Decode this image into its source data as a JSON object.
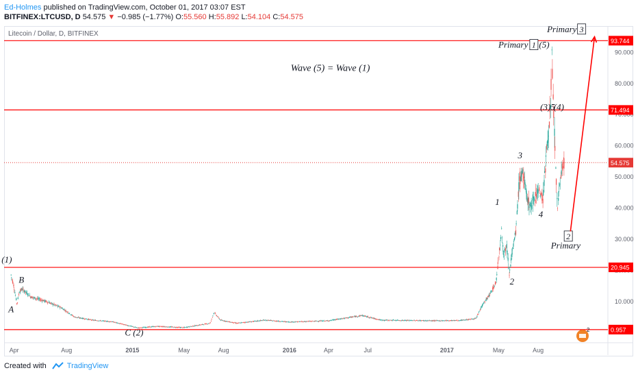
{
  "header": {
    "author": "Ed-Holmes",
    "published": " published on TradingView.com, October 01, 2017 03:07 EST"
  },
  "quote": {
    "symbol": "BITFINEX:LTCUSD, D",
    "last": "54.575",
    "change": "−0.985 (−1.77%)",
    "o_label": "O:",
    "o": "55.560",
    "h_label": "H:",
    "h": "55.892",
    "l_label": "L:",
    "l": "54.104",
    "c_label": "C:",
    "c": "54.575"
  },
  "chart_title": "Litecoin / Dollar, D, BITFINEX",
  "footer": {
    "created_with": "Created with",
    "brand": "TradingView"
  },
  "colors": {
    "up": "#26a69a",
    "down": "#ef5350",
    "line": "#ff0000",
    "axis": "#5d606b",
    "price": "#e53935"
  },
  "chart_data": {
    "type": "candlestick",
    "x_tick_labels": [
      "Apr",
      "Aug",
      "2015",
      "May",
      "Aug",
      "2016",
      "Apr",
      "Jul",
      "2017",
      "May",
      "Aug"
    ],
    "y_tick_labels": [
      "10.000",
      "20.000",
      "30.000",
      "40.000",
      "50.000",
      "60.000",
      "70.000",
      "80.000",
      "90.000"
    ],
    "y_ticks": [
      10,
      20,
      30,
      40,
      50,
      60,
      70,
      80,
      90
    ],
    "ylim": [
      -1.5,
      98
    ],
    "horizontal_levels": [
      {
        "label": "93.744",
        "value": 93.744
      },
      {
        "label": "71.494",
        "value": 71.494
      },
      {
        "label": "20.945",
        "value": 20.945
      },
      {
        "label": "0.957",
        "value": 0.957
      }
    ],
    "current_price": {
      "label": "54.575",
      "value": 54.575
    },
    "price_path": [
      {
        "d": "2014-03-25",
        "v": 18.5
      },
      {
        "d": "2014-03-30",
        "v": 16.0
      },
      {
        "d": "2014-04-05",
        "v": 11.5
      },
      {
        "d": "2014-04-08",
        "v": 9.0
      },
      {
        "d": "2014-04-13",
        "v": 13.0
      },
      {
        "d": "2014-04-20",
        "v": 14.0
      },
      {
        "d": "2014-05-10",
        "v": 11.5
      },
      {
        "d": "2014-06-15",
        "v": 10.0
      },
      {
        "d": "2014-07-20",
        "v": 8.0
      },
      {
        "d": "2014-08-20",
        "v": 5.0
      },
      {
        "d": "2014-10-01",
        "v": 4.0
      },
      {
        "d": "2014-11-15",
        "v": 3.5
      },
      {
        "d": "2015-01-14",
        "v": 1.5
      },
      {
        "d": "2015-03-01",
        "v": 2.0
      },
      {
        "d": "2015-05-01",
        "v": 1.6
      },
      {
        "d": "2015-07-01",
        "v": 3.0
      },
      {
        "d": "2015-07-10",
        "v": 6.5
      },
      {
        "d": "2015-07-25",
        "v": 4.0
      },
      {
        "d": "2015-09-01",
        "v": 3.0
      },
      {
        "d": "2015-11-05",
        "v": 4.0
      },
      {
        "d": "2016-01-01",
        "v": 3.4
      },
      {
        "d": "2016-04-01",
        "v": 3.8
      },
      {
        "d": "2016-06-18",
        "v": 5.5
      },
      {
        "d": "2016-08-01",
        "v": 4.0
      },
      {
        "d": "2016-12-01",
        "v": 3.8
      },
      {
        "d": "2017-02-01",
        "v": 3.9
      },
      {
        "d": "2017-03-10",
        "v": 4.5
      },
      {
        "d": "2017-03-25",
        "v": 9.0
      },
      {
        "d": "2017-04-10",
        "v": 12.0
      },
      {
        "d": "2017-04-25",
        "v": 16.0
      },
      {
        "d": "2017-05-03",
        "v": 26.0
      },
      {
        "d": "2017-05-08",
        "v": 33.0
      },
      {
        "d": "2017-05-13",
        "v": 25.0
      },
      {
        "d": "2017-05-20",
        "v": 28.0
      },
      {
        "d": "2017-05-26",
        "v": 19.0
      },
      {
        "d": "2017-06-01",
        "v": 25.0
      },
      {
        "d": "2017-06-10",
        "v": 32.0
      },
      {
        "d": "2017-06-18",
        "v": 48.0
      },
      {
        "d": "2017-06-26",
        "v": 52.0
      },
      {
        "d": "2017-07-05",
        "v": 44.0
      },
      {
        "d": "2017-07-15",
        "v": 40.0
      },
      {
        "d": "2017-07-25",
        "v": 44.0
      },
      {
        "d": "2017-08-02",
        "v": 46.0
      },
      {
        "d": "2017-08-12",
        "v": 43.0
      },
      {
        "d": "2017-08-22",
        "v": 60.0
      },
      {
        "d": "2017-08-30",
        "v": 72.0
      },
      {
        "d": "2017-09-02",
        "v": 88.0
      },
      {
        "d": "2017-09-07",
        "v": 68.0
      },
      {
        "d": "2017-09-12",
        "v": 50.0
      },
      {
        "d": "2017-09-15",
        "v": 38.0
      },
      {
        "d": "2017-09-20",
        "v": 48.0
      },
      {
        "d": "2017-09-25",
        "v": 52.0
      },
      {
        "d": "2017-10-01",
        "v": 54.575
      }
    ],
    "annotations": [
      {
        "text": "(1)",
        "d": "2014-03-15",
        "v": 22.5
      },
      {
        "text": "B",
        "d": "2014-04-18",
        "v": 16.0
      },
      {
        "text": "A",
        "d": "2014-03-25",
        "v": 6.5
      },
      {
        "text": "C (2)",
        "d": "2015-01-05",
        "v": -1.0
      },
      {
        "text": "1",
        "d": "2017-04-28",
        "v": 41.0
      },
      {
        "text": "2",
        "d": "2017-06-01",
        "v": 15.5
      },
      {
        "text": "3",
        "d": "2017-06-20",
        "v": 56.0
      },
      {
        "text": "4",
        "d": "2017-08-07",
        "v": 37.0
      },
      {
        "text": "(3)5",
        "d": "2017-08-23",
        "v": 71.5
      },
      {
        "text": "(4)",
        "d": "2017-09-18",
        "v": 71.5
      },
      {
        "text": "Wave (5) = Wave (1)",
        "d": "2016-04-05",
        "v": 84.0
      },
      {
        "text": "Primary",
        "d": "2017-06-04",
        "v": 91.5
      },
      {
        "text": "(5)",
        "d": "2017-08-15",
        "v": 91.5
      },
      {
        "text": "Primary",
        "d": "2017-10-04",
        "v": 27.0
      },
      {
        "text": "Primary",
        "d": "2017-09-25",
        "v": 96.5
      }
    ],
    "wave_boxes": [
      {
        "text": "1",
        "d": "2017-07-22",
        "v": 91.5
      },
      {
        "text": "2",
        "d": "2017-10-10",
        "v": 30.0
      },
      {
        "text": "3",
        "d": "2017-11-10",
        "v": 96.5
      }
    ],
    "projection_arrow": {
      "from": {
        "d": "2017-10-15",
        "v": 32.5
      },
      "to": {
        "d": "2017-12-10",
        "v": 95.0
      }
    },
    "x_tick_dates": [
      "2014-04-01",
      "2014-08-01",
      "2015-01-01",
      "2015-05-01",
      "2015-08-01",
      "2016-01-01",
      "2016-04-01",
      "2016-07-01",
      "2017-01-01",
      "2017-05-01",
      "2017-08-01"
    ],
    "xlim": [
      "2014-03-12",
      "2018-01-10"
    ]
  }
}
